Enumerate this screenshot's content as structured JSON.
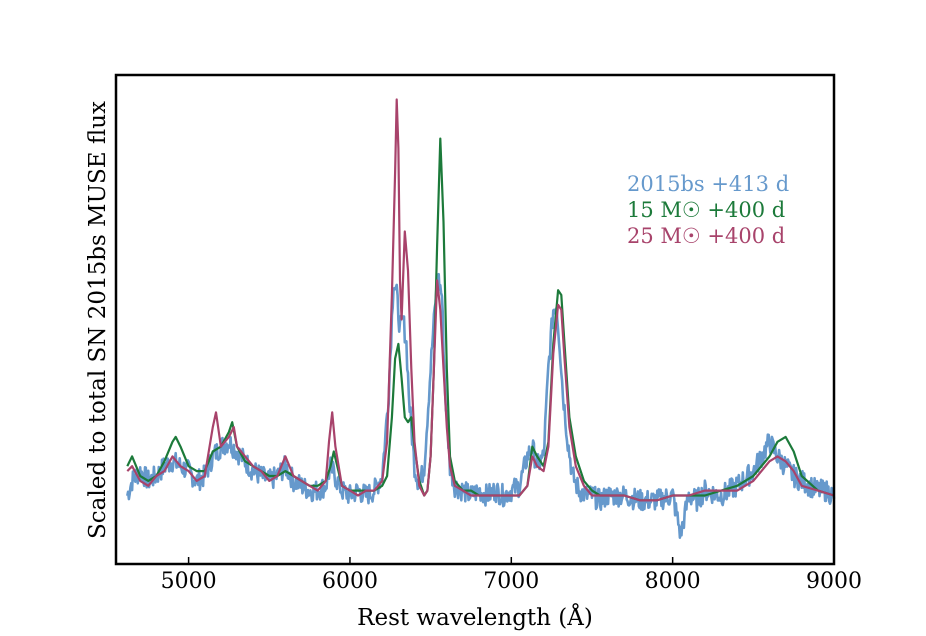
{
  "chart_data": {
    "type": "line",
    "xlabel": "Rest wavelength (Å)",
    "ylabel": "Scaled to total SN 2015bs MUSE flux",
    "xlim": [
      4550,
      9000
    ],
    "ylim": [
      0,
      1.0
    ],
    "x_ticks": [
      5000,
      6000,
      7000,
      8000,
      9000
    ],
    "y_ticks_shown": false,
    "legend_placement": "upper-right",
    "series": [
      {
        "name": "2015bs +413 d",
        "color": "#6699cc",
        "noisy": true,
        "x": [
          4620,
          4650,
          4700,
          4750,
          4800,
          4850,
          4900,
          4950,
          5000,
          5050,
          5100,
          5150,
          5200,
          5250,
          5300,
          5350,
          5400,
          5450,
          5500,
          5550,
          5600,
          5650,
          5700,
          5750,
          5800,
          5850,
          5880,
          5920,
          5950,
          6000,
          6050,
          6100,
          6150,
          6200,
          6240,
          6270,
          6290,
          6310,
          6330,
          6350,
          6370,
          6400,
          6430,
          6460,
          6500,
          6530,
          6550,
          6570,
          6590,
          6620,
          6650,
          6700,
          6750,
          6800,
          6850,
          6900,
          6950,
          7000,
          7050,
          7100,
          7130,
          7160,
          7200,
          7230,
          7260,
          7280,
          7300,
          7320,
          7350,
          7380,
          7420,
          7470,
          7500,
          7550,
          7600,
          7700,
          7800,
          7900,
          8000,
          8050,
          8100,
          8150,
          8200,
          8300,
          8400,
          8500,
          8550,
          8600,
          8650,
          8700,
          8750,
          8800,
          8850,
          8900,
          8950,
          9000
        ],
        "values": [
          0.14,
          0.17,
          0.19,
          0.17,
          0.18,
          0.2,
          0.21,
          0.2,
          0.19,
          0.17,
          0.18,
          0.22,
          0.24,
          0.25,
          0.23,
          0.21,
          0.19,
          0.18,
          0.17,
          0.18,
          0.2,
          0.17,
          0.16,
          0.15,
          0.15,
          0.16,
          0.2,
          0.17,
          0.15,
          0.14,
          0.15,
          0.14,
          0.15,
          0.18,
          0.35,
          0.58,
          0.55,
          0.48,
          0.5,
          0.45,
          0.32,
          0.2,
          0.16,
          0.2,
          0.4,
          0.54,
          0.58,
          0.55,
          0.35,
          0.2,
          0.16,
          0.15,
          0.14,
          0.15,
          0.14,
          0.15,
          0.14,
          0.15,
          0.16,
          0.22,
          0.24,
          0.2,
          0.22,
          0.4,
          0.52,
          0.53,
          0.45,
          0.35,
          0.25,
          0.18,
          0.15,
          0.14,
          0.14,
          0.13,
          0.14,
          0.14,
          0.13,
          0.13,
          0.14,
          0.06,
          0.14,
          0.13,
          0.15,
          0.14,
          0.16,
          0.19,
          0.22,
          0.25,
          0.22,
          0.2,
          0.18,
          0.17,
          0.16,
          0.15,
          0.15,
          0.14
        ]
      },
      {
        "name": "15 M☉ +400 d",
        "color": "#1c7a3a",
        "noisy": false,
        "x": [
          4620,
          4650,
          4700,
          4750,
          4800,
          4850,
          4900,
          4920,
          4950,
          5000,
          5050,
          5100,
          5150,
          5200,
          5250,
          5270,
          5300,
          5350,
          5400,
          5450,
          5500,
          5550,
          5600,
          5650,
          5700,
          5750,
          5800,
          5850,
          5880,
          5900,
          5950,
          6000,
          6050,
          6100,
          6150,
          6200,
          6230,
          6260,
          6280,
          6300,
          6320,
          6340,
          6360,
          6380,
          6400,
          6430,
          6460,
          6480,
          6500,
          6520,
          6540,
          6560,
          6580,
          6600,
          6620,
          6650,
          6700,
          6750,
          6800,
          6900,
          7000,
          7050,
          7100,
          7130,
          7160,
          7200,
          7230,
          7260,
          7290,
          7310,
          7330,
          7360,
          7400,
          7450,
          7500,
          7550,
          7600,
          7700,
          7800,
          7900,
          8000,
          8100,
          8200,
          8300,
          8400,
          8500,
          8600,
          8650,
          8700,
          8750,
          8800,
          8900,
          9000
        ],
        "values": [
          0.2,
          0.22,
          0.18,
          0.17,
          0.18,
          0.21,
          0.25,
          0.26,
          0.24,
          0.2,
          0.19,
          0.19,
          0.23,
          0.24,
          0.27,
          0.29,
          0.24,
          0.21,
          0.2,
          0.19,
          0.18,
          0.18,
          0.19,
          0.18,
          0.17,
          0.16,
          0.16,
          0.17,
          0.2,
          0.23,
          0.16,
          0.15,
          0.15,
          0.15,
          0.15,
          0.16,
          0.18,
          0.3,
          0.42,
          0.45,
          0.38,
          0.3,
          0.29,
          0.3,
          0.24,
          0.17,
          0.14,
          0.15,
          0.22,
          0.4,
          0.65,
          0.87,
          0.7,
          0.4,
          0.22,
          0.17,
          0.15,
          0.15,
          0.14,
          0.14,
          0.14,
          0.14,
          0.16,
          0.24,
          0.22,
          0.2,
          0.25,
          0.45,
          0.56,
          0.55,
          0.45,
          0.3,
          0.22,
          0.17,
          0.15,
          0.14,
          0.14,
          0.14,
          0.13,
          0.13,
          0.14,
          0.14,
          0.14,
          0.15,
          0.16,
          0.18,
          0.22,
          0.25,
          0.26,
          0.23,
          0.18,
          0.15,
          0.14
        ]
      },
      {
        "name": "25 M☉ +400 d",
        "color": "#a8436b",
        "noisy": false,
        "x": [
          4620,
          4650,
          4700,
          4750,
          4800,
          4850,
          4900,
          4950,
          5000,
          5050,
          5100,
          5150,
          5170,
          5200,
          5250,
          5280,
          5300,
          5350,
          5400,
          5450,
          5500,
          5550,
          5600,
          5650,
          5700,
          5750,
          5800,
          5850,
          5870,
          5890,
          5910,
          5950,
          6000,
          6050,
          6100,
          6150,
          6200,
          6230,
          6260,
          6280,
          6290,
          6300,
          6310,
          6320,
          6340,
          6360,
          6380,
          6400,
          6430,
          6460,
          6480,
          6500,
          6520,
          6540,
          6560,
          6580,
          6600,
          6620,
          6650,
          6700,
          6750,
          6800,
          6900,
          7000,
          7050,
          7100,
          7130,
          7160,
          7200,
          7230,
          7260,
          7290,
          7310,
          7330,
          7360,
          7400,
          7450,
          7500,
          7600,
          7700,
          7800,
          7900,
          8000,
          8100,
          8200,
          8300,
          8400,
          8500,
          8600,
          8650,
          8700,
          8750,
          8800,
          8900,
          9000
        ],
        "values": [
          0.19,
          0.2,
          0.17,
          0.16,
          0.18,
          0.19,
          0.22,
          0.2,
          0.19,
          0.17,
          0.18,
          0.28,
          0.31,
          0.24,
          0.26,
          0.28,
          0.24,
          0.22,
          0.2,
          0.19,
          0.17,
          0.18,
          0.22,
          0.18,
          0.17,
          0.16,
          0.15,
          0.17,
          0.25,
          0.31,
          0.24,
          0.16,
          0.15,
          0.14,
          0.15,
          0.15,
          0.17,
          0.25,
          0.55,
          0.8,
          0.95,
          0.85,
          0.58,
          0.5,
          0.68,
          0.6,
          0.4,
          0.25,
          0.16,
          0.14,
          0.15,
          0.22,
          0.4,
          0.58,
          0.52,
          0.4,
          0.28,
          0.2,
          0.16,
          0.15,
          0.14,
          0.14,
          0.14,
          0.14,
          0.14,
          0.16,
          0.22,
          0.2,
          0.19,
          0.24,
          0.43,
          0.53,
          0.52,
          0.42,
          0.28,
          0.2,
          0.16,
          0.14,
          0.14,
          0.14,
          0.13,
          0.13,
          0.14,
          0.14,
          0.15,
          0.15,
          0.15,
          0.17,
          0.21,
          0.22,
          0.21,
          0.19,
          0.16,
          0.15,
          0.14
        ]
      }
    ]
  },
  "legend": {
    "items": [
      {
        "name": "2015bs +413 d",
        "color": "#6699cc"
      },
      {
        "name": "15 M☉ +400 d",
        "color": "#1c7a3a"
      },
      {
        "name": "25 M☉ +400 d",
        "color": "#a8436b"
      }
    ]
  }
}
